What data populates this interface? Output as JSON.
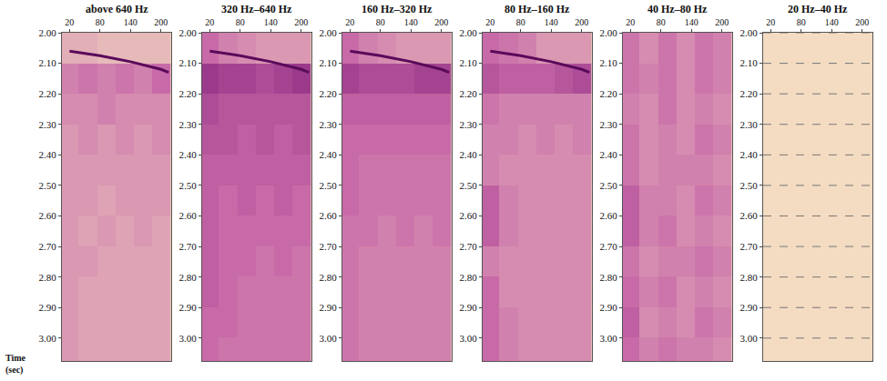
{
  "chart_data": [
    {
      "type": "heatmap",
      "title": "above 640 Hz",
      "ylabel": "Time (sec)",
      "xlim": [
        5,
        220
      ],
      "xticks": [
        20,
        80,
        140,
        200
      ],
      "ylim": [
        2.0,
        3.075
      ],
      "yticks": [
        {
          "value": 2.0,
          "label": "2.00"
        },
        {
          "value": 2.1,
          "label": "2.10"
        },
        {
          "value": 2.2,
          "label": "2.20"
        },
        {
          "value": 2.3,
          "label": "2.30"
        },
        {
          "value": 2.4,
          "label": "2.40"
        },
        {
          "value": 2.5,
          "label": "2.50"
        },
        {
          "value": 2.6,
          "label": "2.60"
        },
        {
          "value": 2.7,
          "label": "2.70"
        },
        {
          "value": 2.8,
          "label": "2.80"
        },
        {
          "value": 2.9,
          "label": "2.90"
        },
        {
          "value": 3.0,
          "label": "3.00"
        }
      ],
      "x": [
        20,
        56,
        92,
        128,
        164,
        200
      ],
      "y": [
        2.05,
        2.15,
        2.25,
        2.35,
        2.45,
        2.55,
        2.65,
        2.75,
        2.85,
        2.95,
        3.05
      ],
      "zlim": [
        0,
        1
      ],
      "z": [
        [
          0.2,
          0.2,
          0.15,
          0.15,
          0.15,
          0.15
        ],
        [
          0.4,
          0.45,
          0.4,
          0.45,
          0.4,
          0.5
        ],
        [
          0.35,
          0.35,
          0.4,
          0.35,
          0.35,
          0.35
        ],
        [
          0.3,
          0.35,
          0.3,
          0.35,
          0.3,
          0.35
        ],
        [
          0.3,
          0.3,
          0.3,
          0.3,
          0.3,
          0.3
        ],
        [
          0.3,
          0.3,
          0.25,
          0.3,
          0.3,
          0.3
        ],
        [
          0.3,
          0.25,
          0.3,
          0.25,
          0.3,
          0.25
        ],
        [
          0.3,
          0.3,
          0.25,
          0.25,
          0.25,
          0.25
        ],
        [
          0.3,
          0.25,
          0.25,
          0.25,
          0.25,
          0.25
        ],
        [
          0.3,
          0.25,
          0.25,
          0.25,
          0.25,
          0.25
        ],
        [
          0.3,
          0.25,
          0.25,
          0.25,
          0.25,
          0.25
        ]
      ],
      "series": [
        {
          "type": "line",
          "color": "#5a0a5a",
          "x": [
            20,
            80,
            140,
            200,
            215
          ],
          "values": [
            2.06,
            2.075,
            2.095,
            2.12,
            2.13
          ]
        }
      ],
      "grid": false
    },
    {
      "type": "heatmap",
      "title": "320 Hz–640 Hz",
      "xlim": [
        5,
        220
      ],
      "xticks": [
        20,
        80,
        140,
        200
      ],
      "ylim": [
        2.0,
        3.075
      ],
      "yticks": [
        {
          "value": 2.0,
          "label": "2.00"
        },
        {
          "value": 2.1,
          "label": "2.10"
        },
        {
          "value": 2.2,
          "label": "2.20"
        },
        {
          "value": 2.3,
          "label": "2.30"
        },
        {
          "value": 2.4,
          "label": "2.40"
        },
        {
          "value": 2.5,
          "label": "2.50"
        },
        {
          "value": 2.6,
          "label": "2.60"
        },
        {
          "value": 2.7,
          "label": "2.70"
        },
        {
          "value": 2.8,
          "label": "2.80"
        },
        {
          "value": 2.9,
          "label": "2.90"
        },
        {
          "value": 3.0,
          "label": "3.00"
        }
      ],
      "x": [
        20,
        56,
        92,
        128,
        164,
        200
      ],
      "y": [
        2.05,
        2.15,
        2.25,
        2.35,
        2.45,
        2.55,
        2.65,
        2.75,
        2.85,
        2.95,
        3.05
      ],
      "zlim": [
        0,
        1
      ],
      "z": [
        [
          0.5,
          0.4,
          0.35,
          0.3,
          0.3,
          0.3
        ],
        [
          0.75,
          0.7,
          0.7,
          0.65,
          0.7,
          0.75
        ],
        [
          0.65,
          0.6,
          0.6,
          0.6,
          0.6,
          0.6
        ],
        [
          0.6,
          0.6,
          0.55,
          0.6,
          0.55,
          0.6
        ],
        [
          0.55,
          0.55,
          0.55,
          0.55,
          0.55,
          0.55
        ],
        [
          0.55,
          0.5,
          0.55,
          0.5,
          0.55,
          0.5
        ],
        [
          0.55,
          0.5,
          0.5,
          0.5,
          0.5,
          0.5
        ],
        [
          0.55,
          0.5,
          0.5,
          0.45,
          0.5,
          0.45
        ],
        [
          0.55,
          0.5,
          0.45,
          0.45,
          0.45,
          0.45
        ],
        [
          0.5,
          0.5,
          0.45,
          0.45,
          0.45,
          0.45
        ],
        [
          0.5,
          0.45,
          0.45,
          0.45,
          0.45,
          0.45
        ]
      ],
      "series": [
        {
          "type": "line",
          "color": "#5a0a5a",
          "x": [
            20,
            80,
            140,
            200,
            215
          ],
          "values": [
            2.06,
            2.075,
            2.095,
            2.12,
            2.13
          ]
        }
      ],
      "grid": false
    },
    {
      "type": "heatmap",
      "title": "160 Hz–320 Hz",
      "xlim": [
        5,
        220
      ],
      "xticks": [
        20,
        80,
        140,
        200
      ],
      "ylim": [
        2.0,
        3.075
      ],
      "yticks": [
        {
          "value": 2.0,
          "label": "2.00"
        },
        {
          "value": 2.1,
          "label": "2.10"
        },
        {
          "value": 2.2,
          "label": "2.20"
        },
        {
          "value": 2.3,
          "label": "2.30"
        },
        {
          "value": 2.4,
          "label": "2.40"
        },
        {
          "value": 2.5,
          "label": "2.50"
        },
        {
          "value": 2.6,
          "label": "2.60"
        },
        {
          "value": 2.7,
          "label": "2.70"
        },
        {
          "value": 2.8,
          "label": "2.80"
        },
        {
          "value": 2.9,
          "label": "2.90"
        },
        {
          "value": 3.0,
          "label": "3.00"
        }
      ],
      "x": [
        20,
        56,
        92,
        128,
        164,
        200
      ],
      "y": [
        2.05,
        2.15,
        2.25,
        2.35,
        2.45,
        2.55,
        2.65,
        2.75,
        2.85,
        2.95,
        3.05
      ],
      "zlim": [
        0,
        1
      ],
      "z": [
        [
          0.5,
          0.4,
          0.35,
          0.3,
          0.3,
          0.3
        ],
        [
          0.7,
          0.65,
          0.65,
          0.65,
          0.7,
          0.7
        ],
        [
          0.55,
          0.55,
          0.55,
          0.55,
          0.55,
          0.55
        ],
        [
          0.5,
          0.5,
          0.5,
          0.5,
          0.5,
          0.5
        ],
        [
          0.5,
          0.45,
          0.45,
          0.45,
          0.45,
          0.45
        ],
        [
          0.5,
          0.45,
          0.45,
          0.45,
          0.45,
          0.45
        ],
        [
          0.45,
          0.45,
          0.4,
          0.45,
          0.4,
          0.45
        ],
        [
          0.45,
          0.4,
          0.4,
          0.4,
          0.4,
          0.4
        ],
        [
          0.45,
          0.4,
          0.4,
          0.4,
          0.4,
          0.4
        ],
        [
          0.45,
          0.4,
          0.4,
          0.4,
          0.4,
          0.4
        ],
        [
          0.45,
          0.4,
          0.4,
          0.4,
          0.4,
          0.4
        ]
      ],
      "series": [
        {
          "type": "line",
          "color": "#5a0a5a",
          "x": [
            20,
            80,
            140,
            200,
            215
          ],
          "values": [
            2.06,
            2.075,
            2.095,
            2.12,
            2.13
          ]
        }
      ],
      "grid": false
    },
    {
      "type": "heatmap",
      "title": "80 Hz–160 Hz",
      "xlim": [
        5,
        220
      ],
      "xticks": [
        20,
        80,
        140,
        200
      ],
      "ylim": [
        2.0,
        3.075
      ],
      "yticks": [
        {
          "value": 2.0,
          "label": "2.00"
        },
        {
          "value": 2.1,
          "label": "2.10"
        },
        {
          "value": 2.2,
          "label": "2.20"
        },
        {
          "value": 2.3,
          "label": "2.30"
        },
        {
          "value": 2.4,
          "label": "2.40"
        },
        {
          "value": 2.5,
          "label": "2.50"
        },
        {
          "value": 2.6,
          "label": "2.60"
        },
        {
          "value": 2.7,
          "label": "2.70"
        },
        {
          "value": 2.8,
          "label": "2.80"
        },
        {
          "value": 2.9,
          "label": "2.90"
        },
        {
          "value": 3.0,
          "label": "3.00"
        }
      ],
      "x": [
        20,
        56,
        92,
        128,
        164,
        200
      ],
      "y": [
        2.05,
        2.15,
        2.25,
        2.35,
        2.45,
        2.55,
        2.65,
        2.75,
        2.85,
        2.95,
        3.05
      ],
      "zlim": [
        0,
        1
      ],
      "z": [
        [
          0.5,
          0.45,
          0.4,
          0.3,
          0.3,
          0.3
        ],
        [
          0.6,
          0.55,
          0.55,
          0.55,
          0.6,
          0.65
        ],
        [
          0.45,
          0.4,
          0.4,
          0.4,
          0.4,
          0.4
        ],
        [
          0.4,
          0.4,
          0.35,
          0.4,
          0.35,
          0.4
        ],
        [
          0.4,
          0.35,
          0.35,
          0.35,
          0.35,
          0.35
        ],
        [
          0.55,
          0.4,
          0.35,
          0.35,
          0.35,
          0.35
        ],
        [
          0.55,
          0.4,
          0.35,
          0.35,
          0.35,
          0.35
        ],
        [
          0.4,
          0.35,
          0.35,
          0.35,
          0.35,
          0.35
        ],
        [
          0.5,
          0.35,
          0.35,
          0.35,
          0.35,
          0.35
        ],
        [
          0.5,
          0.4,
          0.35,
          0.35,
          0.35,
          0.35
        ],
        [
          0.5,
          0.4,
          0.35,
          0.35,
          0.35,
          0.35
        ]
      ],
      "series": [
        {
          "type": "line",
          "color": "#5a0a5a",
          "x": [
            20,
            80,
            140,
            200,
            215
          ],
          "values": [
            2.06,
            2.075,
            2.095,
            2.12,
            2.13
          ]
        }
      ],
      "grid": false
    },
    {
      "type": "heatmap",
      "title": "40 Hz–80 Hz",
      "xlim": [
        5,
        220
      ],
      "xticks": [
        20,
        80,
        140,
        200
      ],
      "ylim": [
        2.0,
        3.075
      ],
      "yticks": [
        {
          "value": 2.0,
          "label": "2.00"
        },
        {
          "value": 2.1,
          "label": "2.10"
        },
        {
          "value": 2.2,
          "label": "2.20"
        },
        {
          "value": 2.3,
          "label": "2.30"
        },
        {
          "value": 2.4,
          "label": "2.40"
        },
        {
          "value": 2.5,
          "label": "2.50"
        },
        {
          "value": 2.6,
          "label": "2.60"
        },
        {
          "value": 2.7,
          "label": "2.70"
        },
        {
          "value": 2.8,
          "label": "2.80"
        },
        {
          "value": 2.9,
          "label": "2.90"
        },
        {
          "value": 3.0,
          "label": "3.00"
        }
      ],
      "x": [
        20,
        56,
        92,
        128,
        164,
        200
      ],
      "y": [
        2.05,
        2.15,
        2.25,
        2.35,
        2.45,
        2.55,
        2.65,
        2.75,
        2.85,
        2.95,
        3.05
      ],
      "zlim": [
        0,
        1
      ],
      "z": [
        [
          0.45,
          0.35,
          0.45,
          0.35,
          0.45,
          0.4
        ],
        [
          0.45,
          0.4,
          0.45,
          0.35,
          0.45,
          0.4
        ],
        [
          0.4,
          0.35,
          0.45,
          0.35,
          0.4,
          0.35
        ],
        [
          0.45,
          0.35,
          0.4,
          0.35,
          0.45,
          0.4
        ],
        [
          0.45,
          0.35,
          0.4,
          0.4,
          0.4,
          0.35
        ],
        [
          0.55,
          0.4,
          0.4,
          0.35,
          0.45,
          0.4
        ],
        [
          0.55,
          0.4,
          0.45,
          0.35,
          0.4,
          0.35
        ],
        [
          0.45,
          0.35,
          0.4,
          0.4,
          0.45,
          0.4
        ],
        [
          0.5,
          0.4,
          0.45,
          0.35,
          0.4,
          0.35
        ],
        [
          0.55,
          0.35,
          0.4,
          0.35,
          0.45,
          0.4
        ],
        [
          0.5,
          0.4,
          0.45,
          0.4,
          0.4,
          0.35
        ]
      ],
      "grid": false
    },
    {
      "type": "heatmap",
      "title": "20 Hz–40 Hz",
      "xlim": [
        5,
        220
      ],
      "xticks": [
        20,
        80,
        140,
        200
      ],
      "ylim": [
        2.0,
        3.075
      ],
      "yticks": [
        {
          "value": 2.0,
          "label": "2.00"
        },
        {
          "value": 2.1,
          "label": "2.10"
        },
        {
          "value": 2.2,
          "label": "2.20"
        },
        {
          "value": 2.3,
          "label": "2.30"
        },
        {
          "value": 2.4,
          "label": "2.40"
        },
        {
          "value": 2.5,
          "label": "2.50"
        },
        {
          "value": 2.6,
          "label": "2.60"
        },
        {
          "value": 2.7,
          "label": "2.70"
        },
        {
          "value": 2.8,
          "label": "2.80"
        },
        {
          "value": 2.9,
          "label": "2.90"
        },
        {
          "value": 3.0,
          "label": "3.00"
        }
      ],
      "x": [
        20,
        56,
        92,
        128,
        164,
        200
      ],
      "y": [
        2.05,
        2.15,
        2.25,
        2.35,
        2.45,
        2.55,
        2.65,
        2.75,
        2.85,
        2.95,
        3.05
      ],
      "zlim": [
        0,
        1
      ],
      "z": [
        [
          0,
          0,
          0,
          0,
          0,
          0
        ],
        [
          0,
          0,
          0,
          0,
          0,
          0
        ],
        [
          0,
          0,
          0,
          0,
          0,
          0
        ],
        [
          0,
          0,
          0,
          0,
          0,
          0
        ],
        [
          0,
          0,
          0,
          0,
          0,
          0
        ],
        [
          0,
          0,
          0,
          0,
          0,
          0
        ],
        [
          0,
          0,
          0,
          0,
          0,
          0
        ],
        [
          0,
          0,
          0,
          0,
          0,
          0
        ],
        [
          0,
          0,
          0,
          0,
          0,
          0
        ],
        [
          0,
          0,
          0,
          0,
          0,
          0
        ],
        [
          0,
          0,
          0,
          0,
          0,
          0
        ]
      ],
      "grid": true
    }
  ]
}
